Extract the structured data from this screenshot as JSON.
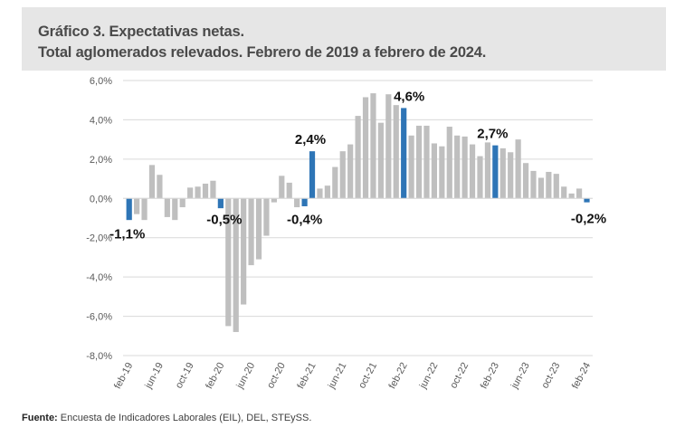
{
  "header": {
    "title_line1": "Gráfico 3. Expectativas netas.",
    "title_line2": "Total aglomerados relevados. Febrero de 2019 a febrero de 2024."
  },
  "footer": {
    "label": "Fuente:",
    "text": "Encuesta de Indicadores Laborales (EIL), DEL, STEySS."
  },
  "colors": {
    "highlight": "#2e75b6",
    "bar": "#bfbfbf",
    "grid": "#d9d9d9",
    "header_bg": "#e6e6e6"
  },
  "chart_data": {
    "type": "bar",
    "title": "Gráfico 3. Expectativas netas. Total aglomerados relevados. Febrero de 2019 a febrero de 2024.",
    "xlabel": "",
    "ylabel": "",
    "ylim": [
      -8,
      6
    ],
    "yticks": [
      "6,0%",
      "4,0%",
      "2,0%",
      "0,0%",
      "-2,0%",
      "-4,0%",
      "-6,0%",
      "-8,0%"
    ],
    "ytick_values": [
      6,
      4,
      2,
      0,
      -2,
      -4,
      -6,
      -8
    ],
    "grid": true,
    "legend": "none",
    "xtick_labels": [
      "feb-19",
      "jun-19",
      "oct-19",
      "feb-20",
      "jun-20",
      "oct-20",
      "feb-21",
      "jun-21",
      "oct-21",
      "feb-22",
      "jun-22",
      "oct-22",
      "feb-23",
      "jun-23",
      "oct-23",
      "feb-24"
    ],
    "categories": [
      "feb-19",
      "mar-19",
      "abr-19",
      "may-19",
      "jun-19",
      "jul-19",
      "ago-19",
      "sep-19",
      "oct-19",
      "nov-19",
      "dic-19",
      "ene-20",
      "feb-20",
      "mar-20",
      "abr-20",
      "may-20",
      "jun-20",
      "jul-20",
      "ago-20",
      "sep-20",
      "oct-20",
      "nov-20",
      "dic-20",
      "ene-21",
      "feb-21",
      "mar-21",
      "abr-21",
      "may-21",
      "jun-21",
      "jul-21",
      "ago-21",
      "sep-21",
      "oct-21",
      "nov-21",
      "dic-21",
      "ene-22",
      "feb-22",
      "mar-22",
      "abr-22",
      "may-22",
      "jun-22",
      "jul-22",
      "ago-22",
      "sep-22",
      "oct-22",
      "nov-22",
      "dic-22",
      "ene-23",
      "feb-23",
      "mar-23",
      "abr-23",
      "may-23",
      "jun-23",
      "jul-23",
      "ago-23",
      "sep-23",
      "oct-23",
      "nov-23",
      "dic-23",
      "ene-24",
      "feb-24"
    ],
    "values": [
      -1.1,
      -0.8,
      -1.1,
      1.7,
      1.2,
      -0.95,
      -1.1,
      -0.45,
      0.55,
      0.6,
      0.75,
      0.9,
      -0.5,
      -6.5,
      -6.8,
      -5.4,
      -3.4,
      -3.1,
      -1.9,
      -0.2,
      1.15,
      0.8,
      -0.45,
      -0.4,
      2.4,
      0.5,
      0.65,
      1.6,
      2.4,
      2.75,
      4.2,
      5.15,
      5.35,
      3.85,
      5.3,
      4.75,
      4.6,
      3.2,
      3.7,
      3.7,
      2.8,
      2.65,
      3.65,
      3.2,
      3.15,
      2.75,
      2.15,
      2.85,
      2.7,
      2.55,
      2.35,
      3.0,
      1.8,
      1.4,
      1.05,
      1.35,
      1.25,
      0.6,
      0.25,
      0.5,
      -0.2
    ],
    "highlighted": [
      0,
      12,
      23,
      24,
      36,
      48,
      60
    ],
    "data_labels": [
      {
        "index": 0,
        "text": "-1,1%"
      },
      {
        "index": 12,
        "text": "-0,5%"
      },
      {
        "index": 23,
        "text": "-0,4%"
      },
      {
        "index": 24,
        "text": "2,4%"
      },
      {
        "index": 36,
        "text": "4,6%"
      },
      {
        "index": 48,
        "text": "2,7%"
      },
      {
        "index": 60,
        "text": "-0,2%"
      }
    ]
  }
}
